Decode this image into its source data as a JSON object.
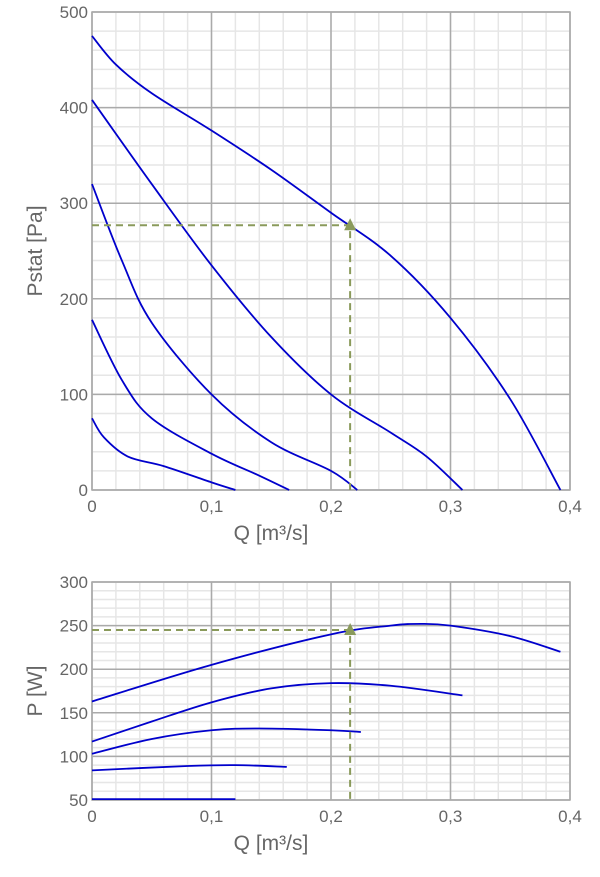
{
  "chart_data": [
    {
      "type": "line",
      "xlabel": "Q [m³/s]",
      "ylabel": "Pstat [Pa]",
      "xlim": [
        0,
        0.4
      ],
      "ylim": [
        0,
        500
      ],
      "xticks": [
        "0",
        "0,1",
        "0,2",
        "0,3",
        "0,4"
      ],
      "yticks": [
        "0",
        "100",
        "200",
        "300",
        "400",
        "500"
      ],
      "xtick_values": [
        0,
        0.1,
        0.2,
        0.3,
        0.4
      ],
      "ytick_values": [
        0,
        100,
        200,
        300,
        400,
        500
      ],
      "grid": true,
      "series_color": "#0000cc",
      "series": [
        {
          "x": [
            0,
            0.02,
            0.05,
            0.1,
            0.15,
            0.2,
            0.25,
            0.3,
            0.35,
            0.392
          ],
          "y": [
            475,
            445,
            415,
            376,
            335,
            290,
            245,
            180,
            95,
            0
          ]
        },
        {
          "x": [
            0,
            0.05,
            0.1,
            0.15,
            0.2,
            0.25,
            0.28,
            0.31
          ],
          "y": [
            408,
            320,
            235,
            160,
            100,
            60,
            35,
            0
          ]
        },
        {
          "x": [
            0,
            0.025,
            0.05,
            0.1,
            0.15,
            0.2,
            0.222
          ],
          "y": [
            320,
            240,
            175,
            100,
            50,
            20,
            0
          ]
        },
        {
          "x": [
            0,
            0.025,
            0.05,
            0.1,
            0.14,
            0.165
          ],
          "y": [
            178,
            115,
            75,
            38,
            15,
            0
          ]
        },
        {
          "x": [
            0,
            0.01,
            0.03,
            0.06,
            0.1,
            0.12
          ],
          "y": [
            75,
            55,
            35,
            25,
            8,
            0
          ]
        }
      ],
      "operating_point": {
        "x": 0.216,
        "y": 277,
        "color": "#8a9a5b"
      }
    },
    {
      "type": "line",
      "xlabel": "Q [m³/s]",
      "ylabel": "P [W]",
      "xlim": [
        0,
        0.4
      ],
      "ylim": [
        50,
        300
      ],
      "xticks": [
        "0",
        "0,1",
        "0,2",
        "0,3",
        "0,4"
      ],
      "yticks": [
        "50",
        "100",
        "150",
        "200",
        "250",
        "300"
      ],
      "xtick_values": [
        0,
        0.1,
        0.2,
        0.3,
        0.4
      ],
      "ytick_values": [
        50,
        100,
        150,
        200,
        250,
        300
      ],
      "grid": true,
      "series_color": "#0000cc",
      "series": [
        {
          "x": [
            0,
            0.1,
            0.2,
            0.25,
            0.275,
            0.3,
            0.35,
            0.392
          ],
          "y": [
            163,
            205,
            240,
            250,
            252,
            250,
            238,
            220
          ]
        },
        {
          "x": [
            0,
            0.05,
            0.1,
            0.15,
            0.2,
            0.25,
            0.31
          ],
          "y": [
            117,
            140,
            162,
            178,
            184,
            181,
            170
          ]
        },
        {
          "x": [
            0,
            0.05,
            0.1,
            0.14,
            0.2,
            0.225
          ],
          "y": [
            103,
            120,
            130,
            132,
            130,
            128
          ]
        },
        {
          "x": [
            0,
            0.08,
            0.12,
            0.163
          ],
          "y": [
            84,
            89,
            90,
            88
          ]
        },
        {
          "x": [
            0,
            0.12
          ],
          "y": [
            51,
            51
          ]
        }
      ],
      "operating_point": {
        "x": 0.216,
        "y": 245,
        "color": "#8a9a5b"
      }
    }
  ]
}
